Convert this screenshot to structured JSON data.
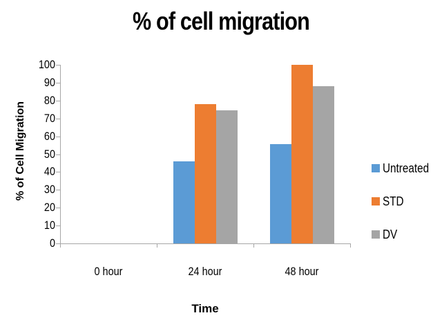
{
  "chart_data": {
    "type": "bar",
    "title": "% of cell migration",
    "xlabel": "Time",
    "ylabel": "% of Cell Migration",
    "categories": [
      "0 hour",
      "24 hour",
      "48 hour"
    ],
    "series": [
      {
        "name": "Untreated",
        "color": "#5b9bd5",
        "values": [
          0,
          46,
          55.5
        ]
      },
      {
        "name": "STD",
        "color": "#ed7d31",
        "values": [
          0,
          78,
          100
        ]
      },
      {
        "name": "DV",
        "color": "#a5a5a5",
        "values": [
          0,
          74.5,
          88
        ]
      }
    ],
    "ylim": [
      0,
      100
    ],
    "yticks": [
      0,
      10,
      20,
      30,
      40,
      50,
      60,
      70,
      80,
      90,
      100
    ],
    "grid": false,
    "legend_position": "right"
  }
}
